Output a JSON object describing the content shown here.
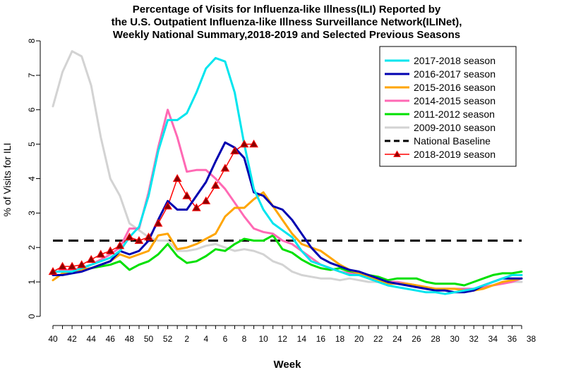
{
  "chart_data": {
    "type": "line",
    "title": [
      "Percentage of Visits for Influenza-like Illness(ILI) Reported by",
      "the U.S. Outpatient Influenza-like Illness Surveillance Network(ILINet),",
      "Weekly National Summary,2018-2019 and Selected Previous Seasons"
    ],
    "xlabel": "Week",
    "ylabel": "% of Visits for ILI",
    "ylim": [
      0,
      8
    ],
    "yticks": [
      0,
      1,
      2,
      3,
      4,
      5,
      6,
      7,
      8
    ],
    "xtick_labels": [
      "40",
      "42",
      "44",
      "46",
      "48",
      "50",
      "52",
      "2",
      "4",
      "6",
      "8",
      "10",
      "12",
      "14",
      "16",
      "18",
      "20",
      "22",
      "24",
      "26",
      "28",
      "30",
      "32",
      "34",
      "36",
      "38"
    ],
    "legend_position": "top-right",
    "baseline": {
      "name": "National Baseline",
      "value": 2.2,
      "color": "#000000"
    },
    "series": [
      {
        "name": "2017-2018 season",
        "color": "#00e5ee",
        "values": [
          1.3,
          1.3,
          1.3,
          1.4,
          1.5,
          1.6,
          1.7,
          1.9,
          2.3,
          2.6,
          3.5,
          4.8,
          5.7,
          5.7,
          5.9,
          6.5,
          7.2,
          7.5,
          7.4,
          6.5,
          5.0,
          3.7,
          3.1,
          2.7,
          2.5,
          2.3,
          1.9,
          1.6,
          1.5,
          1.4,
          1.3,
          1.2,
          1.2,
          1.1,
          1.0,
          0.9,
          0.85,
          0.8,
          0.75,
          0.7,
          0.7,
          0.65,
          0.7,
          0.75,
          0.8,
          0.9,
          1.0,
          1.1,
          1.2,
          1.2
        ]
      },
      {
        "name": "2016-2017 season",
        "color": "#0000b0",
        "values": [
          1.2,
          1.2,
          1.25,
          1.3,
          1.4,
          1.5,
          1.6,
          1.9,
          1.8,
          1.9,
          2.2,
          2.8,
          3.35,
          3.1,
          3.1,
          3.5,
          3.9,
          4.5,
          5.05,
          4.9,
          4.6,
          3.6,
          3.5,
          3.2,
          3.1,
          2.8,
          2.4,
          2.0,
          1.7,
          1.55,
          1.45,
          1.35,
          1.3,
          1.2,
          1.1,
          1.0,
          0.95,
          0.9,
          0.85,
          0.8,
          0.75,
          0.75,
          0.7,
          0.7,
          0.75,
          0.9,
          1.0,
          1.1,
          1.1,
          1.1
        ]
      },
      {
        "name": "2015-2016 season",
        "color": "#ffa500",
        "values": [
          1.05,
          1.25,
          1.3,
          1.35,
          1.4,
          1.5,
          1.6,
          1.8,
          1.7,
          1.8,
          1.9,
          2.35,
          2.4,
          1.95,
          2.0,
          2.1,
          2.25,
          2.4,
          2.9,
          3.15,
          3.15,
          3.4,
          3.6,
          3.2,
          2.8,
          2.4,
          2.1,
          2.0,
          1.9,
          1.7,
          1.5,
          1.35,
          1.25,
          1.15,
          1.05,
          0.95,
          0.95,
          0.95,
          0.9,
          0.85,
          0.8,
          0.8,
          0.8,
          0.75,
          0.75,
          0.8,
          0.9,
          1.0,
          1.05,
          1.1
        ]
      },
      {
        "name": "2014-2015 season",
        "color": "#ff69b4",
        "values": [
          1.25,
          1.35,
          1.35,
          1.4,
          1.5,
          1.65,
          1.8,
          2.0,
          2.55,
          2.55,
          3.6,
          4.9,
          6.0,
          5.2,
          4.2,
          4.25,
          4.25,
          4.0,
          3.7,
          3.3,
          2.9,
          2.55,
          2.45,
          2.4,
          2.2,
          2.1,
          1.9,
          1.7,
          1.5,
          1.4,
          1.3,
          1.25,
          1.2,
          1.15,
          1.1,
          1.0,
          1.0,
          0.95,
          0.9,
          0.85,
          0.8,
          0.8,
          0.8,
          0.8,
          0.8,
          0.85,
          0.9,
          0.95,
          1.0,
          1.1
        ]
      },
      {
        "name": "2011-2012 season",
        "color": "#00e000",
        "values": [
          1.3,
          1.3,
          1.3,
          1.35,
          1.4,
          1.45,
          1.5,
          1.6,
          1.35,
          1.5,
          1.6,
          1.8,
          2.1,
          1.75,
          1.55,
          1.6,
          1.75,
          1.95,
          1.9,
          2.1,
          2.25,
          2.2,
          2.2,
          2.35,
          1.95,
          1.85,
          1.65,
          1.5,
          1.4,
          1.35,
          1.4,
          1.3,
          1.25,
          1.2,
          1.15,
          1.05,
          1.1,
          1.1,
          1.1,
          1.0,
          0.95,
          0.95,
          0.95,
          0.9,
          1.0,
          1.1,
          1.2,
          1.25,
          1.25,
          1.3
        ]
      },
      {
        "name": "2009-2010 season",
        "color": "#d3d3d3",
        "values": [
          6.1,
          7.1,
          7.7,
          7.55,
          6.7,
          5.2,
          4.0,
          3.5,
          2.7,
          2.5,
          2.3,
          2.2,
          2.2,
          1.9,
          1.9,
          1.95,
          2.05,
          2.1,
          2.0,
          1.9,
          1.95,
          1.9,
          1.8,
          1.6,
          1.5,
          1.3,
          1.2,
          1.15,
          1.1,
          1.1,
          1.05,
          1.1,
          1.05,
          1.0,
          1.0,
          0.95,
          0.95,
          0.9,
          0.85,
          0.85,
          0.8,
          0.8,
          0.8,
          0.75,
          0.8,
          0.85,
          0.9,
          1.0,
          1.0,
          1.0
        ]
      },
      {
        "name": "2018-2019 season",
        "color": "#ff0000",
        "marker": "triangle",
        "marker_fill": "#8b0000",
        "values": [
          1.3,
          1.45,
          1.45,
          1.5,
          1.65,
          1.8,
          1.9,
          2.05,
          2.3,
          2.2,
          2.3,
          2.7,
          3.2,
          4.0,
          3.5,
          3.15,
          3.35,
          3.8,
          4.3,
          4.8,
          5.0,
          5.0
        ]
      }
    ]
  }
}
